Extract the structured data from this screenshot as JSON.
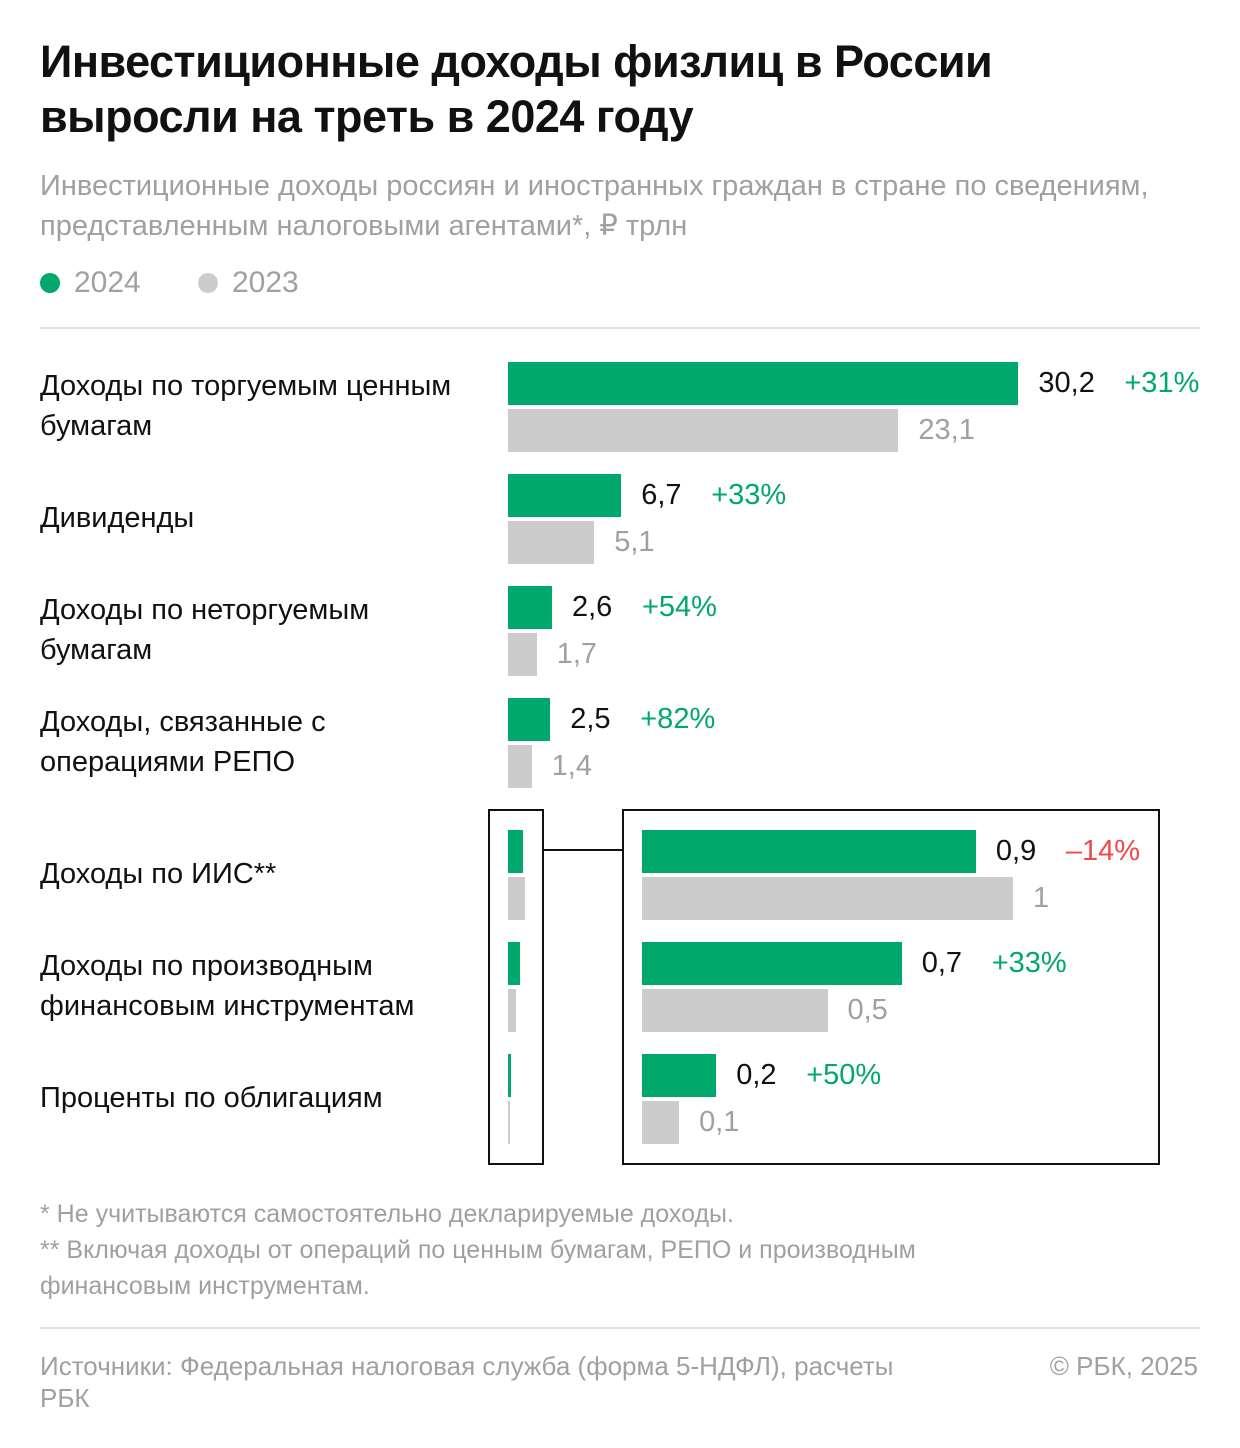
{
  "title": "Инвестиционные доходы физлиц в России выросли на треть в 2024 году",
  "subtitle": "Инвестиционные доходы россиян и иностранных граждан в стране по сведениям, представленным налоговыми агентами*, ₽ трлн",
  "colors": {
    "y2024": "#00a86b",
    "y2023": "#cccccc",
    "negative": "#f0484a",
    "positive": "#00a86b"
  },
  "chart_data": {
    "type": "bar",
    "orientation": "horizontal",
    "legend": [
      "2024",
      "2023"
    ],
    "unit": "₽ трлн",
    "categories": [
      "Доходы по торгуемым ценным бумагам",
      "Дивиденды",
      "Доходы по неторгуемым бумагам",
      "Доходы, связанные с операциями РЕПО",
      "Доходы по ИИС**",
      "Доходы по производным финансовым инструментам",
      "Проценты по облигациям"
    ],
    "series": [
      {
        "name": "2024",
        "values": [
          30.2,
          6.7,
          2.6,
          2.5,
          0.9,
          0.7,
          0.2
        ],
        "labels": [
          "30,2",
          "6,7",
          "2,6",
          "2,5",
          "0,9",
          "0,7",
          "0,2"
        ]
      },
      {
        "name": "2023",
        "values": [
          23.1,
          5.1,
          1.7,
          1.4,
          1,
          0.5,
          0.1
        ],
        "labels": [
          "23,1",
          "5,1",
          "1,7",
          "1,4",
          "1",
          "0,5",
          "0,1"
        ]
      }
    ],
    "changes": [
      "+31%",
      "+33%",
      "+54%",
      "+82%",
      "–14%",
      "+33%",
      "+50%"
    ],
    "zoomed_inset_categories": [
      4,
      5,
      6
    ]
  },
  "footnotes": [
    "* Не учитываются самостоятельно декларируемые доходы.",
    "** Включая доходы от операций по ценным бумагам, РЕПО и производным финансовым инструментам."
  ],
  "source": "Источники: Федеральная налоговая служба (форма 5-НДФЛ), расчеты РБК",
  "copyright": "© РБК, 2025"
}
